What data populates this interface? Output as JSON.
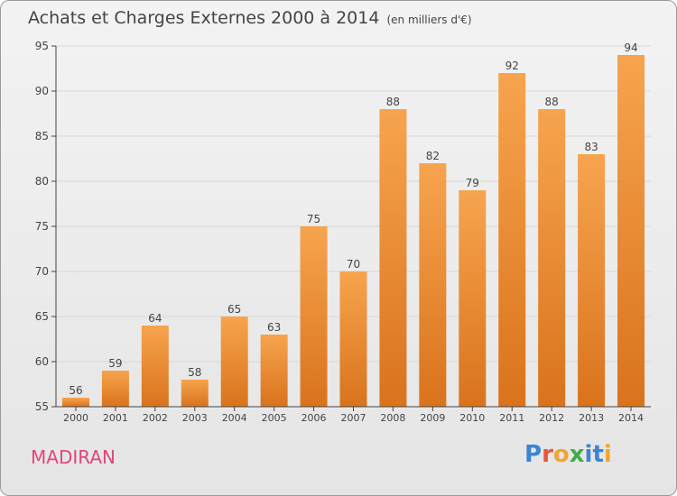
{
  "title": "Achats et Charges Externes 2000 à 2014",
  "subtitle": "(en milliers d'€)",
  "commune": "MADIRAN",
  "brand": {
    "name": "Proxiti",
    "letters": [
      "P",
      "r",
      "o",
      "x",
      "i",
      "t",
      "i"
    ],
    "colors": [
      "#3a86d4",
      "#e8553a",
      "#f2a531",
      "#3dae49",
      "#3a86d4",
      "#3a86d4",
      "#f2a531"
    ]
  },
  "colors": {
    "bar_light": "#f7a44e",
    "bar_dark": "#d9731c",
    "axis": "#444444",
    "grid": "#d8d8d8",
    "commune": "#e0467a"
  },
  "chart_data": {
    "type": "bar",
    "title": "Achats et Charges Externes 2000 à 2014",
    "subtitle": "(en milliers d'€)",
    "xlabel": "",
    "ylabel": "",
    "categories": [
      "2000",
      "2001",
      "2002",
      "2003",
      "2004",
      "2005",
      "2006",
      "2007",
      "2008",
      "2009",
      "2010",
      "2011",
      "2012",
      "2013",
      "2014"
    ],
    "values": [
      56,
      59,
      64,
      58,
      65,
      63,
      75,
      70,
      88,
      82,
      79,
      92,
      88,
      83,
      94
    ],
    "ylim": [
      55,
      95
    ],
    "yticks": [
      55,
      60,
      65,
      70,
      75,
      80,
      85,
      90,
      95
    ],
    "grid": true,
    "data_labels": true
  }
}
